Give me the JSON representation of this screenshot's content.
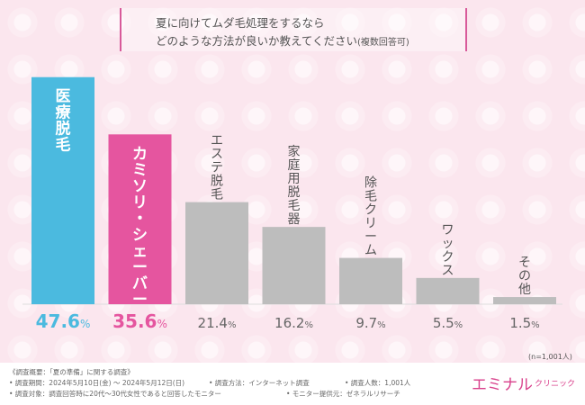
{
  "title": {
    "line1": "夏に向けてムダ毛処理をするなら",
    "line2": "どのような方法が良いか教えてください",
    "note": "(複数回答可)"
  },
  "chart_data": {
    "type": "bar",
    "categories": [
      "医療脱毛",
      "カミソリ・シェーバー",
      "エステ脱毛",
      "家庭用脱毛器",
      "除毛クリーム",
      "ワックス",
      "その他"
    ],
    "values": [
      47.6,
      35.6,
      21.4,
      16.2,
      9.7,
      5.5,
      1.5
    ],
    "value_labels": [
      "47.6%",
      "35.6%",
      "21.4%",
      "16.2%",
      "9.7%",
      "5.5%",
      "1.5%"
    ],
    "colors": [
      "#4bbadf",
      "#e5559f",
      "#bdbdbd",
      "#bdbdbd",
      "#bdbdbd",
      "#bdbdbd",
      "#bdbdbd"
    ],
    "label_colors": [
      "#4bbadf",
      "#e5559f",
      "#666666",
      "#666666",
      "#666666",
      "#666666",
      "#666666"
    ],
    "ylim": [
      0,
      50
    ],
    "grid": false
  },
  "sample_note": "(n=1,001人)",
  "footer": {
    "overview": "《調査概要：「夏の準備」に関する調査》",
    "period": "• 調査期間：2024年5月10日(金) 〜 2024年5月12日(日)",
    "method": "• 調査方法：インターネット調査",
    "count": "• 調査人数：1,001人",
    "target": "• 調査対象：調査回答時に20代〜30代女性であると回答したモニター",
    "provider": "• モニター提供元：ゼネラルリサーチ"
  },
  "brand": {
    "main": "エミナル",
    "sub": "クリニック"
  }
}
